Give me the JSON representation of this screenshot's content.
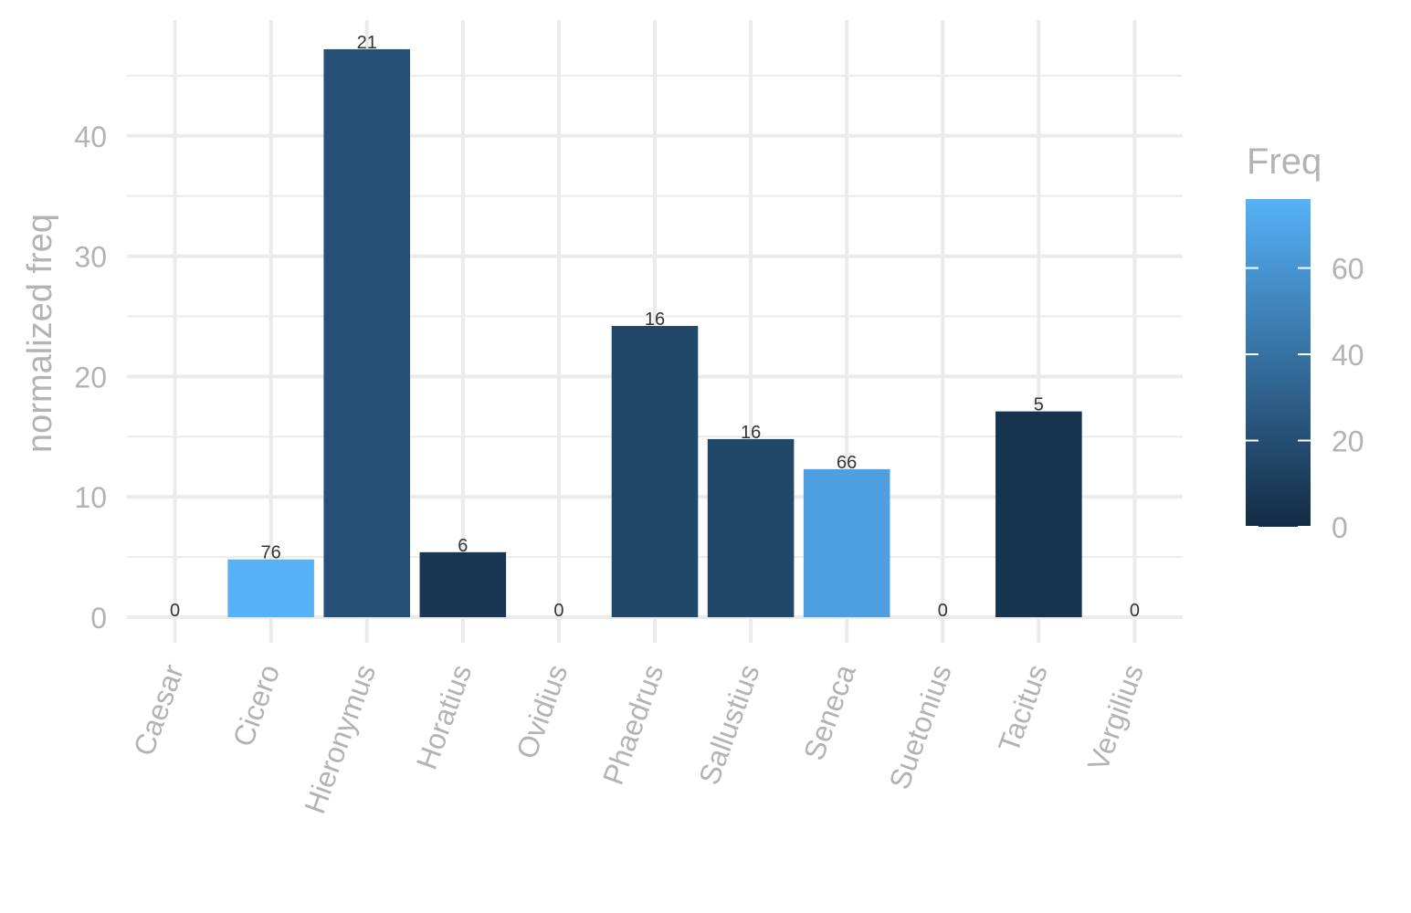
{
  "chart_data": {
    "type": "bar",
    "categories": [
      "Caesar",
      "Cicero",
      "Hieronymus",
      "Horatius",
      "Ovidius",
      "Phaedrus",
      "Sallustius",
      "Seneca",
      "Suetonius",
      "Tacitus",
      "Vergilius"
    ],
    "values": [
      0,
      4.8,
      47.2,
      5.4,
      0,
      24.2,
      14.8,
      12.3,
      0,
      17.1,
      0
    ],
    "freq": [
      0,
      76,
      21,
      6,
      0,
      16,
      16,
      66,
      0,
      5,
      0
    ],
    "data_labels": [
      "0",
      "76",
      "21",
      "6",
      "0",
      "16",
      "16",
      "66",
      "0",
      "5",
      "0"
    ],
    "xlabel": "",
    "ylabel": "normalized freq",
    "ylim": [
      -2,
      50
    ],
    "y_ticks": [
      0,
      10,
      20,
      30,
      40
    ],
    "grid": true,
    "legend": {
      "title": "Freq",
      "placement": "right",
      "range": [
        0,
        76
      ],
      "ticks": [
        0,
        20,
        40,
        60
      ],
      "color_low": "#132B43",
      "color_high": "#56B1F7"
    }
  }
}
